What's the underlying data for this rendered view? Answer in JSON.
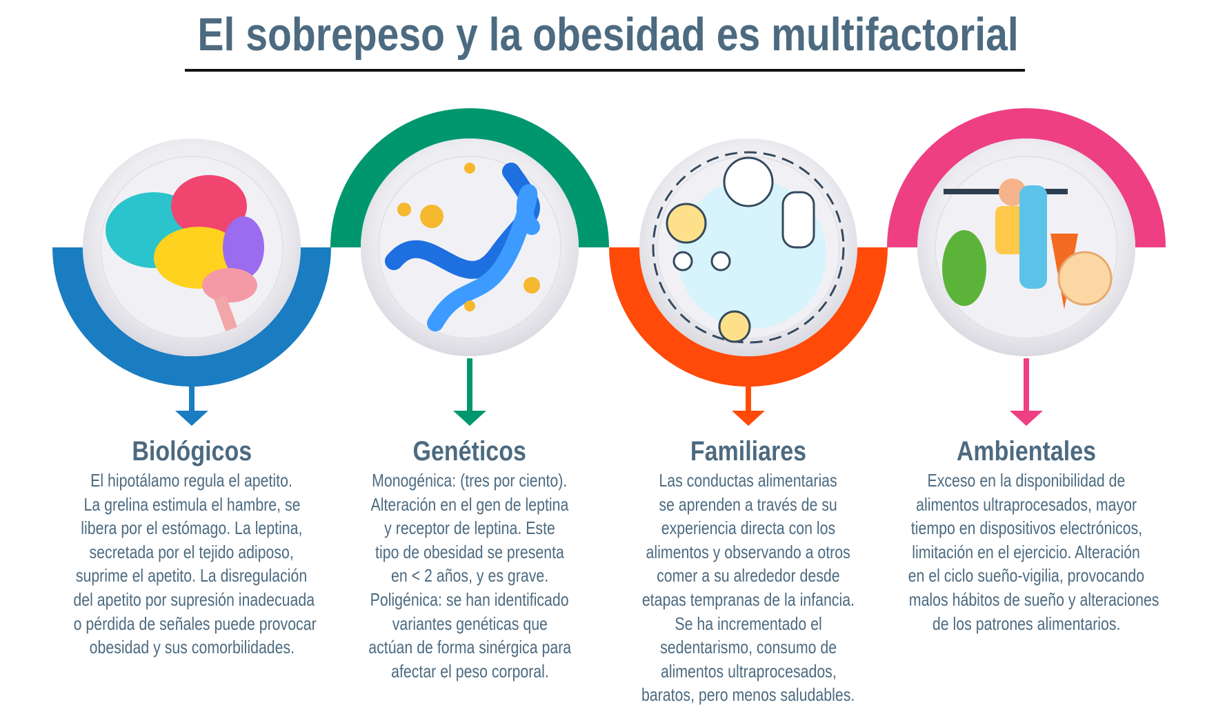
{
  "title": "El sobrepeso y la obesidad es multifactorial",
  "colors": {
    "title": "#4c6a80",
    "biologicos": "#1a7cc1",
    "geneticos": "#00976f",
    "familiares": "#ff4a0a",
    "ambientales": "#ee3f83"
  },
  "factors": [
    {
      "heading": "Biológicos",
      "icon": "brain-icon",
      "lines": [
        "El hipotálamo regula el apetito.",
        "La grelina estimula el hambre, se",
        "libera por el estómago. La leptina,",
        "secretada por el tejido adiposo,",
        "suprime el apetito. La disregulación",
        "del apetito por supresión inadecuada",
        "o pérdida de señales puede provocar",
        "obesidad y sus comorbilidades."
      ]
    },
    {
      "heading": "Genéticos",
      "icon": "dna-icon",
      "lines": [
        "Monogénica: (tres por ciento).",
        "Alteración en el gen de leptina",
        "y receptor de leptina. Este",
        "tipo de obesidad se presenta",
        "en < 2 años, y es grave.",
        "Poligénica: se han identificado",
        "variantes genéticas que",
        "actúan de forma sinérgica para",
        "afectar el peso corporal."
      ]
    },
    {
      "heading": "Familiares",
      "icon": "family-behavior-icon",
      "lines": [
        "Las conductas alimentarias",
        "se aprenden a través de su",
        "experiencia directa con los",
        "alimentos y observando a otros",
        "comer a su alrededor desde",
        "etapas tempranas de la infancia.",
        "Se ha incrementado el",
        "sedentarismo, consumo de",
        "alimentos ultraprocesados,",
        "baratos, pero menos saludables."
      ]
    },
    {
      "heading": "Ambientales",
      "icon": "exercise-food-icon",
      "lines": [
        "Exceso en la disponibilidad de",
        "alimentos ultraprocesados, mayor",
        "tiempo en dispositivos electrónicos,",
        "limitación en el ejercicio. Alteración",
        "en el ciclo sueño-vigilia, provocando",
        "malos hábitos de sueño y alteraciones",
        "de los patrones alimentarios."
      ]
    }
  ]
}
